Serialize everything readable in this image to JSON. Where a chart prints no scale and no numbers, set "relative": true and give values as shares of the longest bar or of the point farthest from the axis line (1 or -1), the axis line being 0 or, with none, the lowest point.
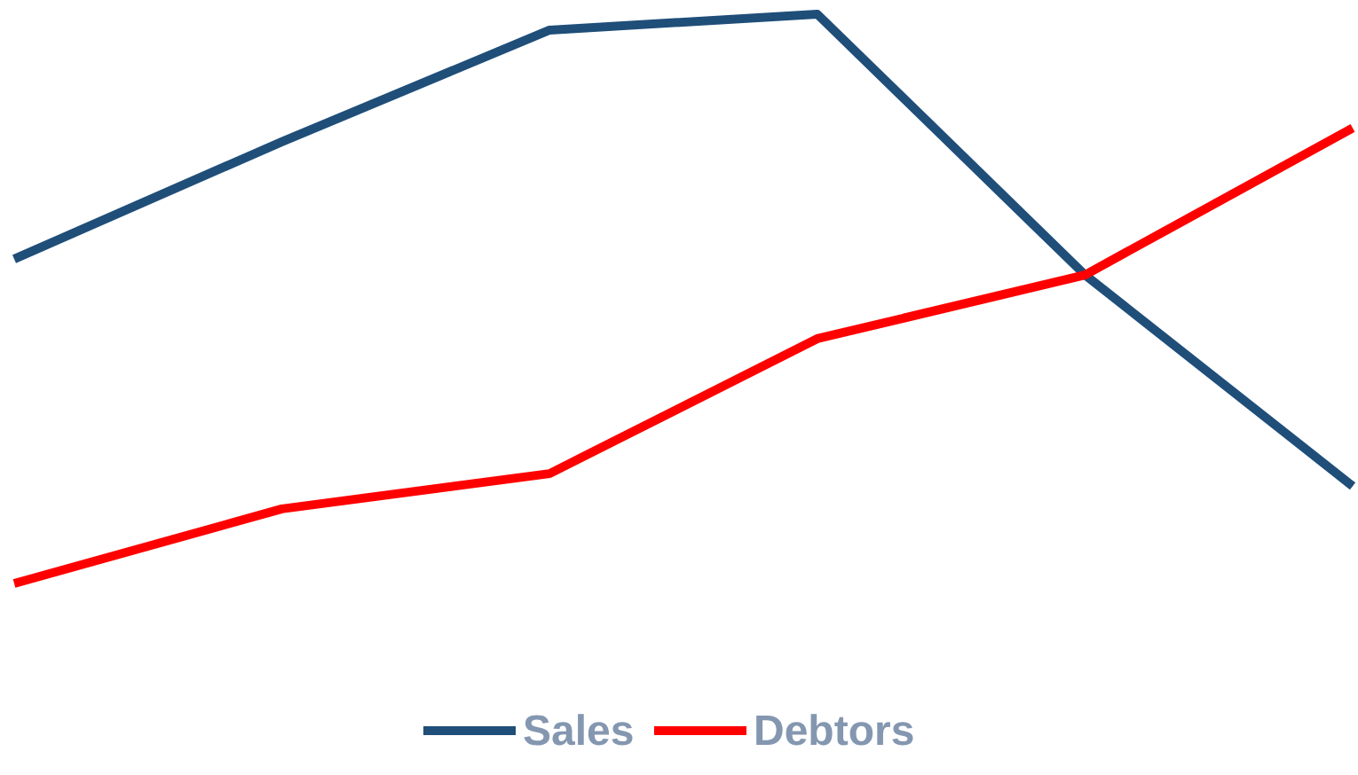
{
  "chart_data": {
    "type": "line",
    "relative": true,
    "categories": [
      null,
      null,
      null,
      null,
      null,
      null
    ],
    "legend": "bottom",
    "series": [
      {
        "name": "Sales",
        "color": "#1f4e79",
        "values": [
          0.57,
          0.776,
          0.972,
          1,
          0.542,
          0.171
        ]
      },
      {
        "name": "Debtors",
        "color": "#ff0000",
        "values": [
          0,
          0.131,
          0.193,
          0.43,
          0.542,
          0.8
        ]
      }
    ]
  }
}
